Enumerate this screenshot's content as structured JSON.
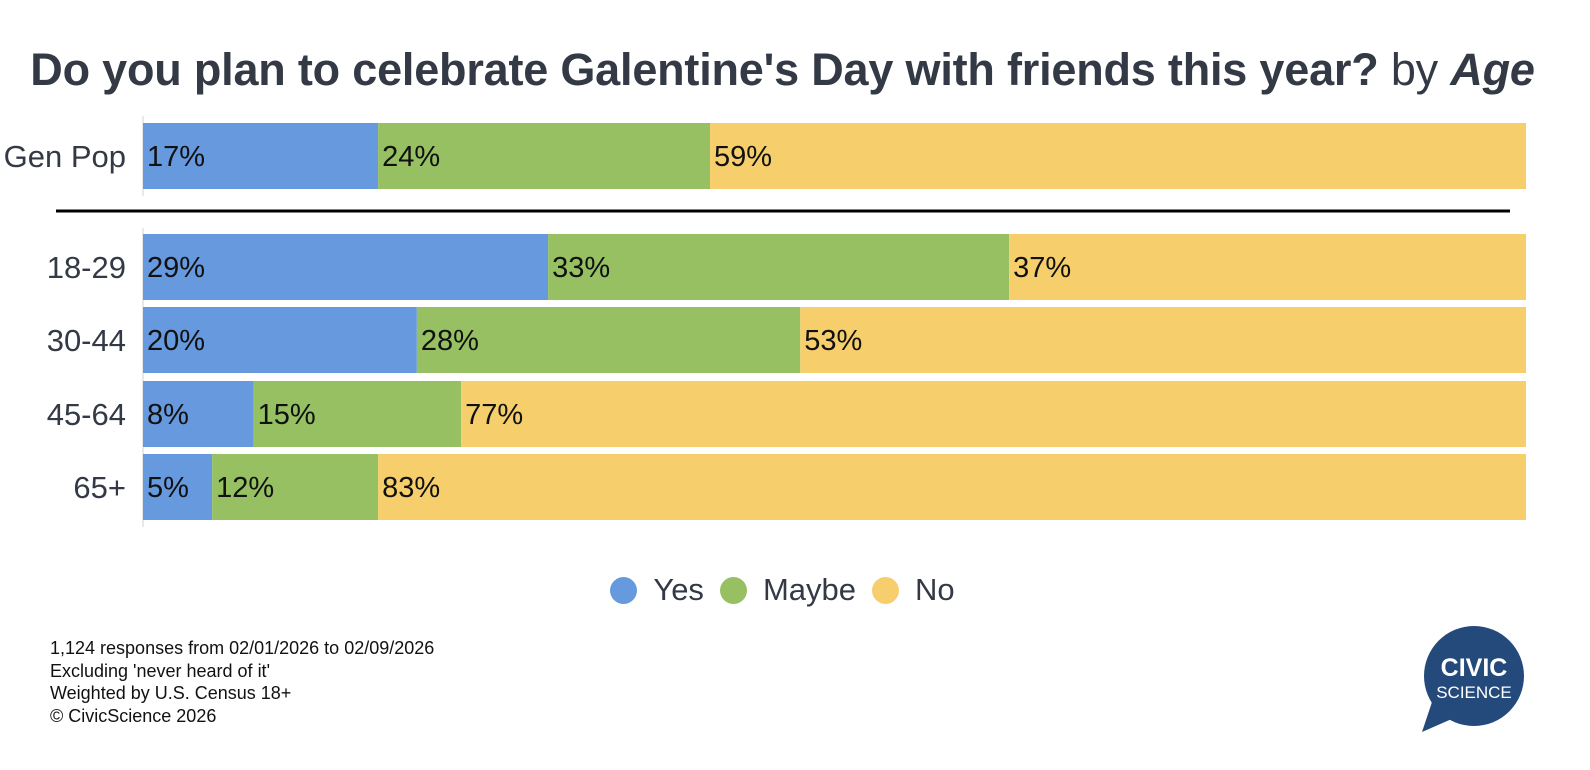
{
  "title": {
    "question": "Do you plan to celebrate Galentine's Day with friends this year?",
    "by": "by",
    "dimension": "Age"
  },
  "chart_data": {
    "type": "bar",
    "orientation": "horizontal",
    "stacked": true,
    "categories": [
      "Gen Pop",
      "18-29",
      "30-44",
      "45-64",
      "65+"
    ],
    "series": [
      {
        "name": "Yes",
        "color": "#6699de",
        "values": [
          17,
          29,
          20,
          8,
          5
        ]
      },
      {
        "name": "Maybe",
        "color": "#96c061",
        "values": [
          24,
          33,
          28,
          15,
          12
        ]
      },
      {
        "name": "No",
        "color": "#f6cf6c",
        "values": [
          59,
          37,
          53,
          77,
          83
        ]
      }
    ],
    "value_suffix": "%",
    "xlim": [
      0,
      100
    ],
    "grid": false,
    "legend_position": "bottom"
  },
  "legend": [
    {
      "label": "Yes",
      "color": "#6699de"
    },
    {
      "label": "Maybe",
      "color": "#96c061"
    },
    {
      "label": "No",
      "color": "#f6cf6c"
    }
  ],
  "notes": [
    "1,124 responses from 02/01/2026 to 02/09/2026",
    "Excluding 'never heard of it'",
    "Weighted by U.S. Census 18+",
    "© CivicScience 2026"
  ],
  "logo": {
    "line1": "CIVIC",
    "line2": "SCIENCE",
    "color": "#244a7c"
  }
}
